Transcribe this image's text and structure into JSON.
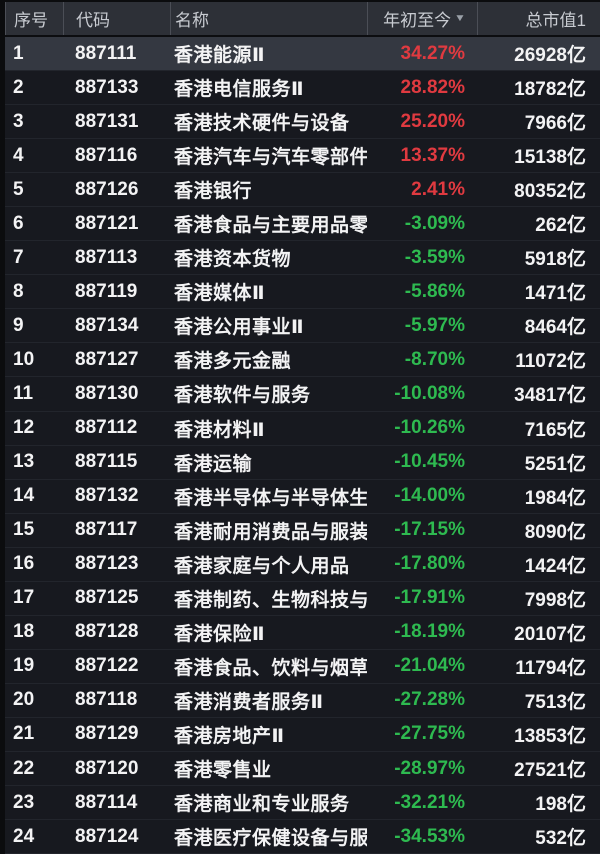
{
  "colors": {
    "up_red": "#e03a40",
    "down_green": "#2eba50"
  },
  "table": {
    "columns": [
      {
        "key": "index",
        "label": "序号"
      },
      {
        "key": "code",
        "label": "代码"
      },
      {
        "key": "name",
        "label": "名称"
      },
      {
        "key": "ytd",
        "label": "年初至今",
        "sort_icon": "▼"
      },
      {
        "key": "cap",
        "label": "总市值1"
      }
    ],
    "selected_row": 1,
    "rows": [
      {
        "index": "1",
        "code": "887111",
        "name": "香港能源Ⅱ",
        "ytd": "34.27%",
        "cap": "26928亿"
      },
      {
        "index": "2",
        "code": "887133",
        "name": "香港电信服务Ⅱ",
        "ytd": "28.82%",
        "cap": "18782亿"
      },
      {
        "index": "3",
        "code": "887131",
        "name": "香港技术硬件与设备",
        "ytd": "25.20%",
        "cap": "7966亿"
      },
      {
        "index": "4",
        "code": "887116",
        "name": "香港汽车与汽车零部件",
        "ytd": "13.37%",
        "cap": "15138亿"
      },
      {
        "index": "5",
        "code": "887126",
        "name": "香港银行",
        "ytd": "2.41%",
        "cap": "80352亿"
      },
      {
        "index": "6",
        "code": "887121",
        "name": "香港食品与主要用品零",
        "ytd": "-3.09%",
        "cap": "262亿"
      },
      {
        "index": "7",
        "code": "887113",
        "name": "香港资本货物",
        "ytd": "-3.59%",
        "cap": "5918亿"
      },
      {
        "index": "8",
        "code": "887119",
        "name": "香港媒体Ⅱ",
        "ytd": "-5.86%",
        "cap": "1471亿"
      },
      {
        "index": "9",
        "code": "887134",
        "name": "香港公用事业Ⅱ",
        "ytd": "-5.97%",
        "cap": "8464亿"
      },
      {
        "index": "10",
        "code": "887127",
        "name": "香港多元金融",
        "ytd": "-8.70%",
        "cap": "11072亿"
      },
      {
        "index": "11",
        "code": "887130",
        "name": "香港软件与服务",
        "ytd": "-10.08%",
        "cap": "34817亿"
      },
      {
        "index": "12",
        "code": "887112",
        "name": "香港材料Ⅱ",
        "ytd": "-10.26%",
        "cap": "7165亿"
      },
      {
        "index": "13",
        "code": "887115",
        "name": "香港运输",
        "ytd": "-10.45%",
        "cap": "5251亿"
      },
      {
        "index": "14",
        "code": "887132",
        "name": "香港半导体与半导体生",
        "ytd": "-14.00%",
        "cap": "1984亿"
      },
      {
        "index": "15",
        "code": "887117",
        "name": "香港耐用消费品与服装",
        "ytd": "-17.15%",
        "cap": "8090亿"
      },
      {
        "index": "16",
        "code": "887123",
        "name": "香港家庭与个人用品",
        "ytd": "-17.80%",
        "cap": "1424亿"
      },
      {
        "index": "17",
        "code": "887125",
        "name": "香港制药、生物科技与",
        "ytd": "-17.91%",
        "cap": "7998亿"
      },
      {
        "index": "18",
        "code": "887128",
        "name": "香港保险Ⅱ",
        "ytd": "-18.19%",
        "cap": "20107亿"
      },
      {
        "index": "19",
        "code": "887122",
        "name": "香港食品、饮料与烟草",
        "ytd": "-21.04%",
        "cap": "11794亿"
      },
      {
        "index": "20",
        "code": "887118",
        "name": "香港消费者服务Ⅱ",
        "ytd": "-27.28%",
        "cap": "7513亿"
      },
      {
        "index": "21",
        "code": "887129",
        "name": "香港房地产Ⅱ",
        "ytd": "-27.75%",
        "cap": "13853亿"
      },
      {
        "index": "22",
        "code": "887120",
        "name": "香港零售业",
        "ytd": "-28.97%",
        "cap": "27521亿"
      },
      {
        "index": "23",
        "code": "887114",
        "name": "香港商业和专业服务",
        "ytd": "-32.21%",
        "cap": "198亿"
      },
      {
        "index": "24",
        "code": "887124",
        "name": "香港医疗保健设备与服",
        "ytd": "-34.53%",
        "cap": "532亿"
      }
    ]
  }
}
